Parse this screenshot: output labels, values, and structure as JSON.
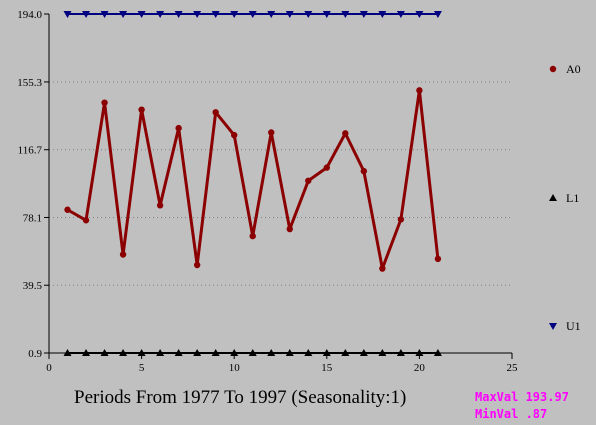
{
  "chart_data": {
    "type": "line",
    "xlabel": "Periods From 1977 To 1997 (Seasonality:1)",
    "ylabel": "",
    "xlim": [
      0,
      25
    ],
    "ylim": [
      0.9,
      194.0
    ],
    "x_ticks": [
      "0",
      "5",
      "10",
      "15",
      "20",
      "25"
    ],
    "y_ticks": [
      "0.9",
      "39.5",
      "78.1",
      "116.7",
      "155.3",
      "194.0"
    ],
    "legend_position": "right",
    "series": [
      {
        "name": "A0",
        "color": "#8b0000",
        "marker": "circle",
        "x": [
          1,
          2,
          3,
          4,
          5,
          6,
          7,
          8,
          9,
          10,
          11,
          12,
          13,
          14,
          15,
          16,
          17,
          18,
          19,
          20,
          21
        ],
        "values": [
          82.5,
          76.5,
          143.5,
          57.0,
          139.5,
          85.0,
          129.0,
          51.0,
          138.0,
          125.0,
          67.5,
          126.5,
          71.5,
          99.0,
          106.5,
          126.0,
          104.5,
          49.0,
          77.0,
          150.5,
          54.5
        ]
      },
      {
        "name": "L1",
        "color": "#000000",
        "marker": "triangle-up",
        "x": [
          1,
          2,
          3,
          4,
          5,
          6,
          7,
          8,
          9,
          10,
          11,
          12,
          13,
          14,
          15,
          16,
          17,
          18,
          19,
          20,
          21
        ],
        "values": [
          0.87,
          0.87,
          0.87,
          0.87,
          0.87,
          0.87,
          0.87,
          0.87,
          0.87,
          0.87,
          0.87,
          0.87,
          0.87,
          0.87,
          0.87,
          0.87,
          0.87,
          0.87,
          0.87,
          0.87,
          0.87
        ]
      },
      {
        "name": "U1",
        "color": "#000080",
        "marker": "triangle-down",
        "x": [
          1,
          2,
          3,
          4,
          5,
          6,
          7,
          8,
          9,
          10,
          11,
          12,
          13,
          14,
          15,
          16,
          17,
          18,
          19,
          20,
          21
        ],
        "values": [
          193.97,
          193.97,
          193.97,
          193.97,
          193.97,
          193.97,
          193.97,
          193.97,
          193.97,
          193.97,
          193.97,
          193.97,
          193.97,
          193.97,
          193.97,
          193.97,
          193.97,
          193.97,
          193.97,
          193.97,
          193.97
        ]
      }
    ]
  },
  "stats": {
    "max_label": "MaxVal 193.97",
    "min_label": "MinVal .87",
    "color": "#ff00ff"
  }
}
